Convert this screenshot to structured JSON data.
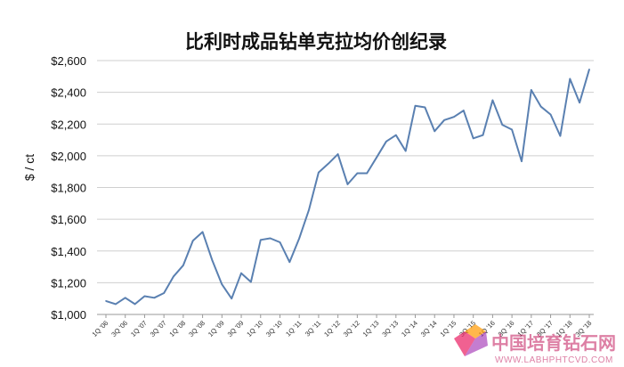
{
  "chart_data": {
    "type": "line",
    "title": "比利时成品钻单克拉均价创纪录",
    "ylabel": "$ / ct",
    "xlabel": "",
    "ylim": [
      1000,
      2600
    ],
    "grid": true,
    "legend": "none",
    "yticks": [
      "$1,000",
      "$1,200",
      "$1,400",
      "$1,600",
      "$1,800",
      "$2,000",
      "$2,200",
      "$2,400",
      "$2,600"
    ],
    "xtick_labels": [
      "1Q '06",
      "3Q '06",
      "1Q '07",
      "3Q '07",
      "1Q '08",
      "3Q '08",
      "1Q '09",
      "3Q '09",
      "1Q '10",
      "3Q '10",
      "1Q '11",
      "3Q '11",
      "1Q '12",
      "3Q '12",
      "1Q '13",
      "3Q '13",
      "1Q '14",
      "3Q '14",
      "1Q '15",
      "3Q '15",
      "1Q '16",
      "3Q '16",
      "1Q '17",
      "3Q '17",
      "1Q '18",
      "3Q '18"
    ],
    "series": [
      {
        "color": "#5a80b1",
        "values": [
          1085,
          1065,
          1105,
          1065,
          1115,
          1105,
          1135,
          1240,
          1310,
          1465,
          1520,
          1340,
          1190,
          1100,
          1260,
          1205,
          1470,
          1480,
          1455,
          1330,
          1480,
          1660,
          1895,
          1950,
          2010,
          1820,
          1890,
          1890,
          1990,
          2090,
          2130,
          2030,
          2315,
          2305,
          2155,
          2225,
          2245,
          2285,
          2110,
          2130,
          2350,
          2195,
          2165,
          1965,
          2415,
          2310,
          2260,
          2125,
          2485,
          2335,
          2545
        ]
      }
    ]
  },
  "watermark": {
    "text_cn": "中国培育钻石网",
    "text_en": "WWW.LABHPHTCVD.COM",
    "logo_colors": [
      "#e91e63",
      "#ff9800",
      "#9c27b0",
      "#2196f3"
    ]
  }
}
